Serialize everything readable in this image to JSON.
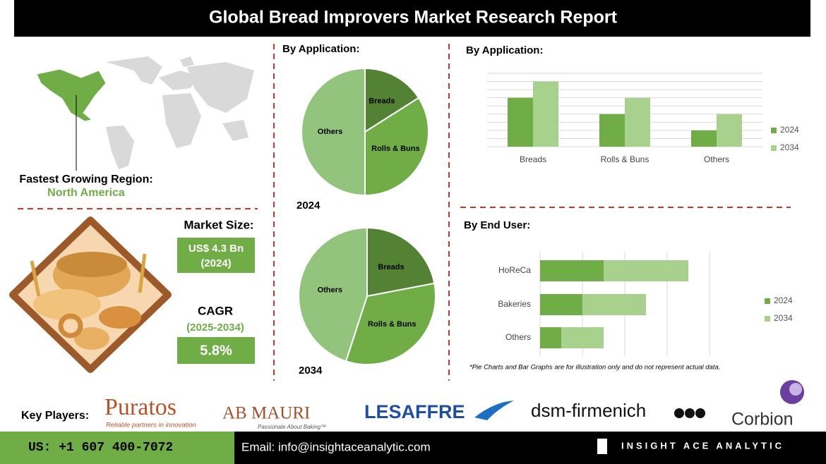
{
  "header": {
    "title": "Global Bread Improvers Market Research Report"
  },
  "region": {
    "label": "Fastest Growing Region:",
    "value": "North America"
  },
  "market_size": {
    "label": "Market Size:",
    "value": "US$ 4.3 Bn",
    "year": "(2024)"
  },
  "cagr": {
    "label": "CAGR",
    "period": "(2025-2034)",
    "value": "5.8%"
  },
  "chart_data": [
    {
      "type": "pie",
      "title": "By Application:",
      "year_label": "2024",
      "categories": [
        "Breads",
        "Rolls & Buns",
        "Others"
      ],
      "values": [
        16,
        34,
        50
      ],
      "colors": [
        "#548235",
        "#70ad47",
        "#93c47d"
      ]
    },
    {
      "type": "pie",
      "year_label": "2034",
      "categories": [
        "Breads",
        "Rolls & Buns",
        "Others"
      ],
      "values": [
        22,
        33,
        45
      ],
      "colors": [
        "#548235",
        "#70ad47",
        "#93c47d"
      ]
    },
    {
      "type": "bar",
      "title": "By Application:",
      "categories": [
        "Breads",
        "Rolls & Buns",
        "Others"
      ],
      "series": [
        {
          "name": "2024",
          "color": "#70ad47",
          "values": [
            6,
            4,
            2
          ]
        },
        {
          "name": "2034",
          "color": "#a9d18e",
          "values": [
            8,
            6,
            4
          ]
        }
      ],
      "ylim": [
        0,
        9
      ],
      "yticks": [
        0,
        1,
        2,
        3,
        4,
        5,
        6,
        7,
        8,
        9
      ],
      "grid": true,
      "legend": "right"
    },
    {
      "type": "bar",
      "orientation": "horizontal",
      "stacked": true,
      "title": "By End User:",
      "categories": [
        "HoReCa",
        "Bakeries",
        "Others"
      ],
      "series": [
        {
          "name": "2024",
          "color": "#70ad47",
          "values": [
            1.5,
            1,
            0.5
          ]
        },
        {
          "name": "2034",
          "color": "#a9d18e",
          "values": [
            2,
            1.5,
            1
          ]
        }
      ],
      "xlim": [
        0,
        4
      ],
      "xticks": [
        0,
        1,
        2,
        3,
        4
      ],
      "grid": true,
      "legend": "right"
    }
  ],
  "note": "*Pie Charts and Bar Graphs are for illustration only and do not represent actual data.",
  "key_players": {
    "label": "Key Players:",
    "companies": [
      {
        "name": "Puratos",
        "tagline": "Reliable partners in innovation"
      },
      {
        "name": "AB MAURI",
        "tagline": "Passionate About Baking™"
      },
      {
        "name": "LESAFFRE"
      },
      {
        "name": "dsm-firmenich"
      },
      {
        "name": "Corbion"
      }
    ]
  },
  "footer": {
    "phone": "US: +1 607 400-7072",
    "email": "Email: info@insightaceanalytic.com",
    "brand": "INSIGHT ACE ANALYTIC"
  }
}
